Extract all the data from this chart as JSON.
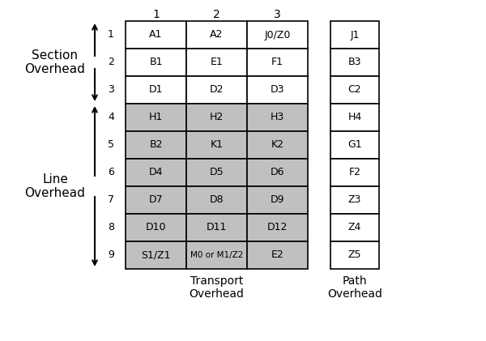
{
  "transport_cells": [
    [
      "A1",
      "A2",
      "J0/Z0"
    ],
    [
      "B1",
      "E1",
      "F1"
    ],
    [
      "D1",
      "D2",
      "D3"
    ],
    [
      "H1",
      "H2",
      "H3"
    ],
    [
      "B2",
      "K1",
      "K2"
    ],
    [
      "D4",
      "D5",
      "D6"
    ],
    [
      "D7",
      "D8",
      "D9"
    ],
    [
      "D10",
      "D11",
      "D12"
    ],
    [
      "S1/Z1",
      "M0 or M1/Z2",
      "E2"
    ]
  ],
  "path_cells": [
    "J1",
    "B3",
    "C2",
    "H4",
    "G1",
    "F2",
    "Z3",
    "Z4",
    "Z5"
  ],
  "col_headers": [
    "1",
    "2",
    "3"
  ],
  "row_headers": [
    "1",
    "2",
    "3",
    "4",
    "5",
    "6",
    "7",
    "8",
    "9"
  ],
  "line_rows": [
    3,
    4,
    5,
    6,
    7,
    8
  ],
  "grey_color": "#c0c0c0",
  "white_color": "#ffffff",
  "border_color": "#000000",
  "text_color": "#000000",
  "transport_label": "Transport\nOverhead",
  "path_label": "Path\nOverhead",
  "section_label": "Section\nOverhead",
  "line_label": "Line\nOverhead",
  "bg_color": "#ffffff",
  "num_rows": 9,
  "num_cols": 3,
  "font_size_cell": 9,
  "font_size_header": 10,
  "font_size_label": 10,
  "font_size_side": 11,
  "font_size_row": 9
}
